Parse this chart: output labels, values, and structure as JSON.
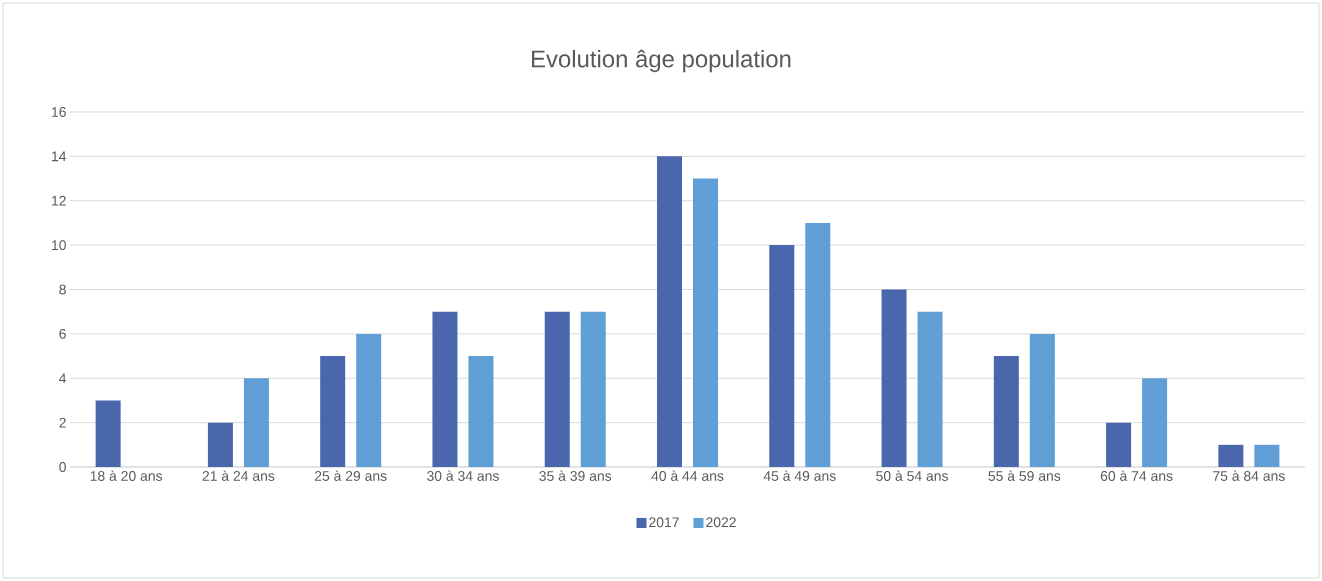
{
  "chart_data": {
    "type": "bar",
    "title": "Evolution âge population",
    "categories": [
      "18 à 20 ans",
      "21 à 24 ans",
      "25 à 29 ans",
      "30 à 34 ans",
      "35 à 39 ans",
      "40 à 44 ans",
      "45 à 49 ans",
      "50 à 54 ans",
      "55 à 59 ans",
      "60 à 74 ans",
      "75 à 84 ans"
    ],
    "series": [
      {
        "name": "2017",
        "color": "#4a66ac",
        "values": [
          3,
          2,
          5,
          7,
          7,
          14,
          10,
          8,
          5,
          2,
          1
        ]
      },
      {
        "name": "2022",
        "color": "#5f9fd6",
        "values": [
          null,
          4,
          6,
          5,
          7,
          13,
          11,
          7,
          6,
          4,
          1
        ]
      }
    ],
    "ylim": [
      0,
      16
    ],
    "yticks": [
      0,
      2,
      4,
      6,
      8,
      10,
      12,
      14,
      16
    ],
    "grid": "y",
    "legend": "bottom"
  }
}
